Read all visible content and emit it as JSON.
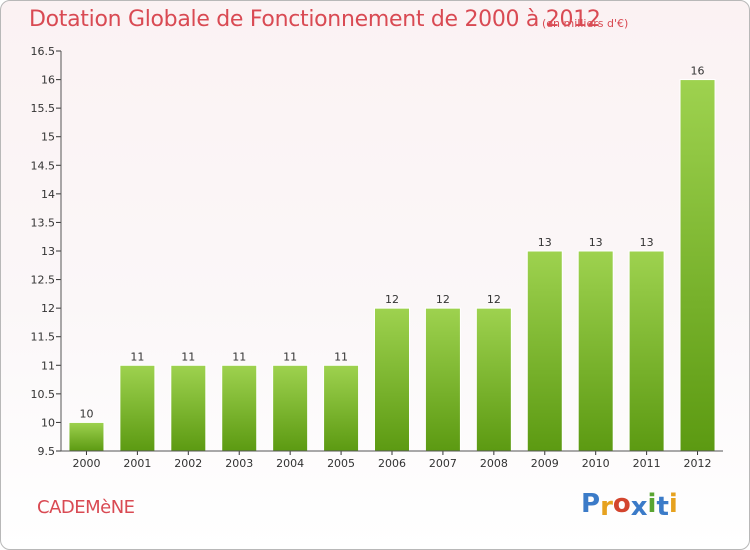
{
  "header": {
    "title": "Dotation Globale de Fonctionnement de 2000 à 2012",
    "unit": "(en milliers d'€)"
  },
  "footer": {
    "commune": "CADEMèNE",
    "brand": "Proxiti",
    "brand_colors": [
      "#3b7bc8",
      "#e6a21f",
      "#d3452e",
      "#3b7bc8",
      "#5aa532",
      "#3b7bc8",
      "#e6a21f"
    ]
  },
  "colors": {
    "bar_top": "#9ed24f",
    "bar_bottom": "#5c9a12",
    "axis": "#555555",
    "grid_tick": "#333333",
    "text": "#333333"
  },
  "chart_data": {
    "type": "bar",
    "title": "Dotation Globale de Fonctionnement de 2000 à 2012",
    "subtitle": "(en milliers d'€)",
    "categories": [
      "2000",
      "2001",
      "2002",
      "2003",
      "2004",
      "2005",
      "2006",
      "2007",
      "2008",
      "2009",
      "2010",
      "2011",
      "2012"
    ],
    "values": [
      10,
      11,
      11,
      11,
      11,
      11,
      12,
      12,
      12,
      13,
      13,
      13,
      16
    ],
    "data_labels": [
      "10",
      "11",
      "11",
      "11",
      "11",
      "11",
      "12",
      "12",
      "12",
      "13",
      "13",
      "13",
      "16"
    ],
    "ylim": [
      9.5,
      16.5
    ],
    "yticks": [
      "9.5",
      "10",
      "10.5",
      "11",
      "11.5",
      "12",
      "12.5",
      "13",
      "13.5",
      "14",
      "14.5",
      "15",
      "15.5",
      "16",
      "16.5"
    ],
    "grid": false,
    "legend": "none"
  }
}
